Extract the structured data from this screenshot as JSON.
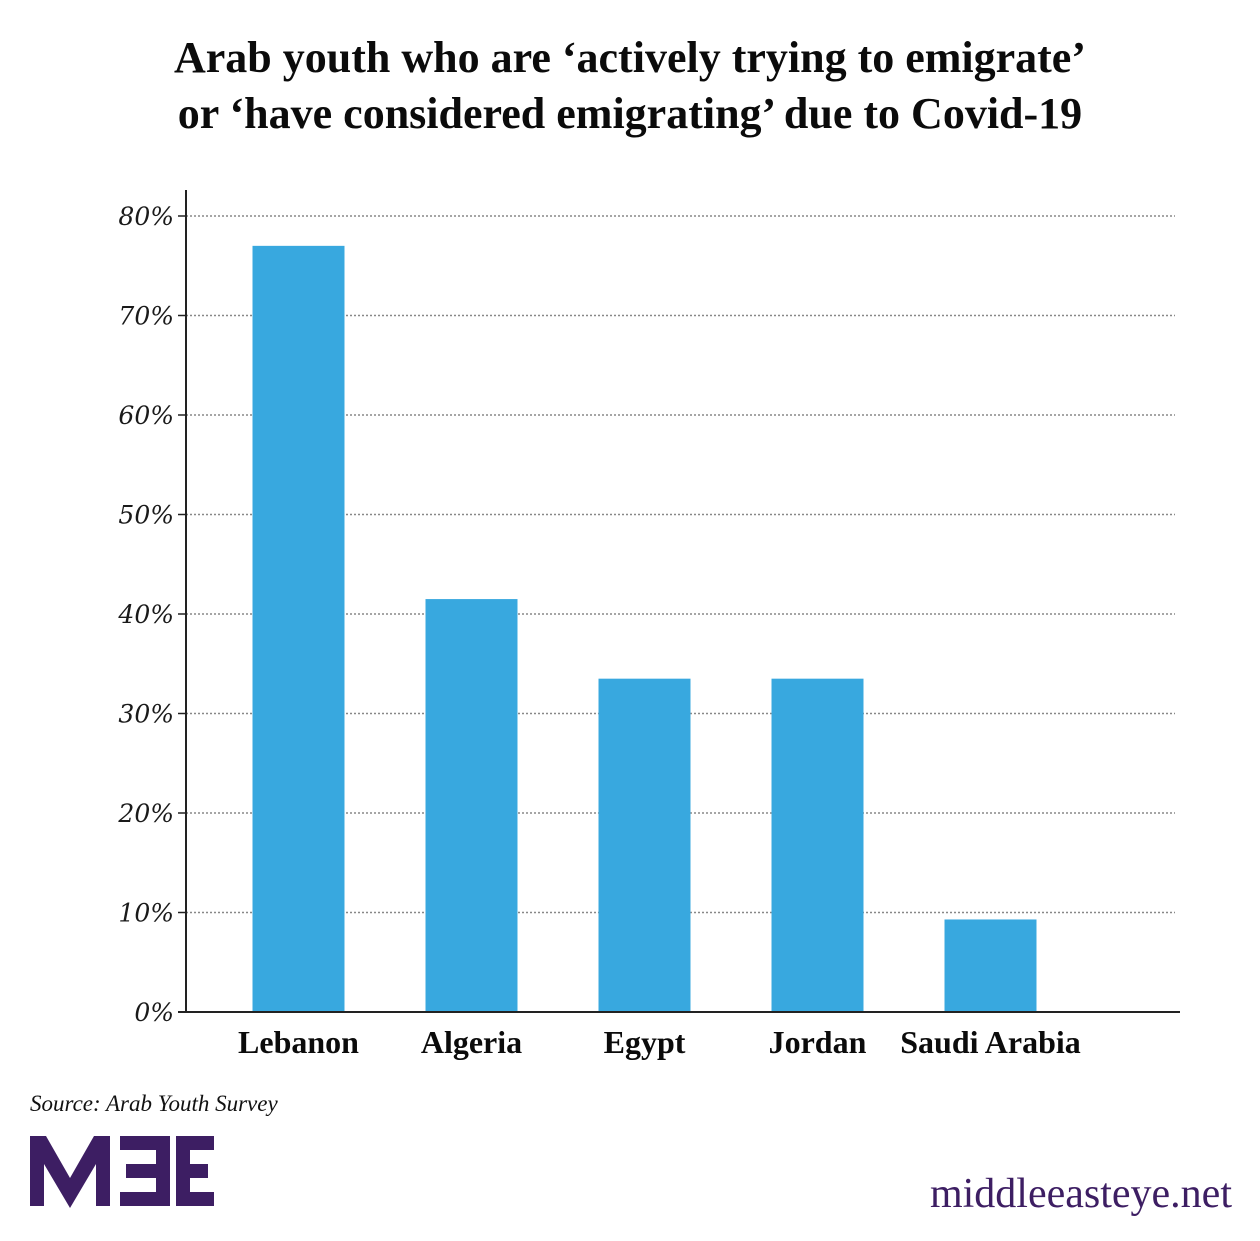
{
  "title_lines": [
    "Arab youth who are ‘actively trying to emigrate’",
    "or ‘have considered emigrating’ due to Covid-19"
  ],
  "source": "Source: Arab Youth Survey",
  "logo": {
    "text": "MEE",
    "color": "#3d1e63"
  },
  "site": "middleeasteye.net",
  "colors": {
    "bar": "#38a8df",
    "axis": "#222222",
    "grid": "#888888",
    "brand": "#3d1e63"
  },
  "chart_data": {
    "type": "bar",
    "title": "Arab youth who are ‘actively trying to emigrate’ or ‘have considered emigrating’ due to Covid-19",
    "categories": [
      "Lebanon",
      "Algeria",
      "Egypt",
      "Jordan",
      "Saudi Arabia"
    ],
    "values": [
      77,
      41.5,
      33.5,
      33.5,
      9.3
    ],
    "xlabel": "",
    "ylabel": "",
    "ylim": [
      0,
      80
    ],
    "yticks": [
      0,
      10,
      20,
      30,
      40,
      50,
      60,
      70,
      80
    ],
    "ytick_labels": [
      "0%",
      "10%",
      "20%",
      "30%",
      "40%",
      "50%",
      "60%",
      "70%",
      "80%"
    ],
    "grid": true,
    "legend": "none"
  }
}
